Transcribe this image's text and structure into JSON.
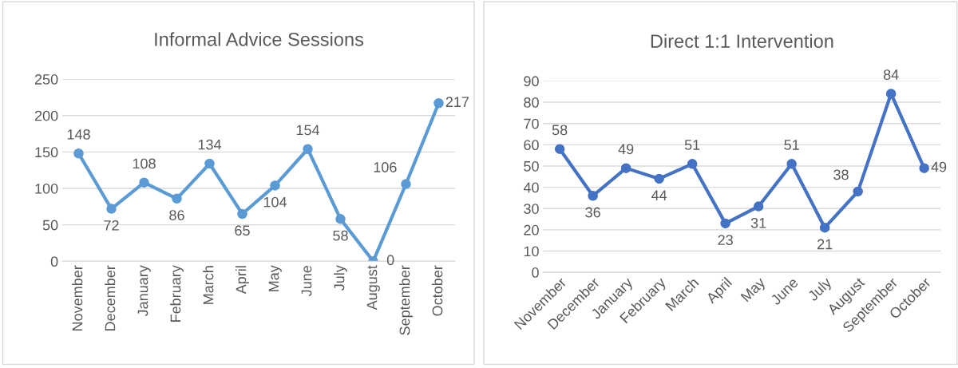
{
  "chart_data": [
    {
      "type": "line",
      "title": "Informal Advice Sessions",
      "categories": [
        "November",
        "December",
        "January",
        "February",
        "March",
        "April",
        "May",
        "June",
        "July",
        "August",
        "September",
        "October"
      ],
      "series": [
        {
          "color": "#5b9bd5",
          "values": [
            148,
            72,
            108,
            86,
            134,
            65,
            104,
            154,
            58,
            0,
            106,
            217
          ]
        }
      ],
      "ylim": [
        0,
        250
      ],
      "yticks": [
        0,
        50,
        100,
        150,
        200,
        250
      ],
      "grid": "y",
      "marker": "circle",
      "line_style": "solid",
      "data_labels": true,
      "legend": false
    },
    {
      "type": "line",
      "title": "Direct 1:1 Intervention",
      "categories": [
        "November",
        "December",
        "January",
        "February",
        "March",
        "April",
        "May",
        "June",
        "July",
        "August",
        "September",
        "October"
      ],
      "series": [
        {
          "color": "#4472c4",
          "values": [
            58,
            36,
            49,
            44,
            51,
            23,
            31,
            51,
            21,
            38,
            84,
            49
          ]
        }
      ],
      "ylim": [
        0,
        90
      ],
      "yticks": [
        0,
        10,
        20,
        30,
        40,
        50,
        60,
        70,
        80,
        90
      ],
      "grid": "y",
      "marker": "circle",
      "line_style": "solid",
      "data_labels": true,
      "legend": false
    }
  ]
}
